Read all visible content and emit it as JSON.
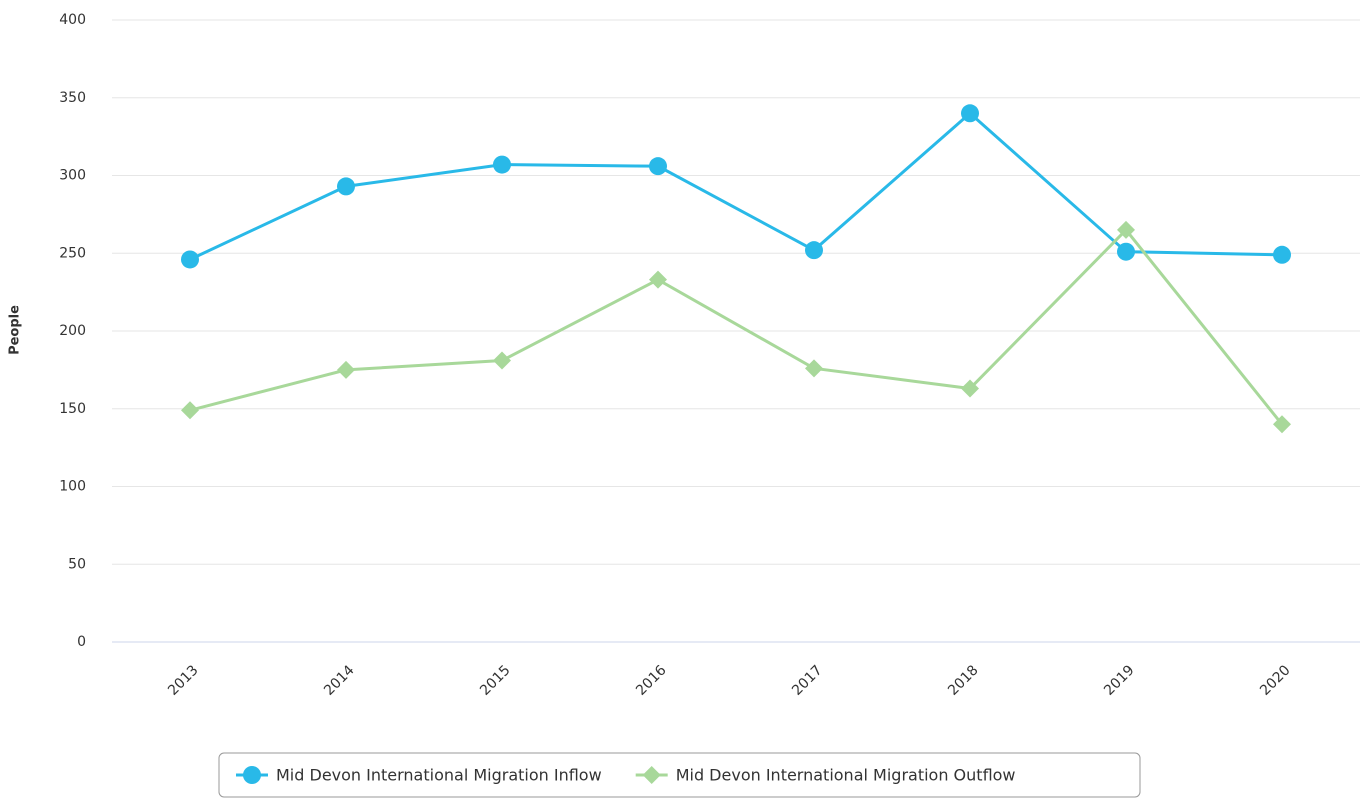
{
  "chart_data": {
    "type": "line",
    "y_label": "People",
    "categories": [
      "2013",
      "2014",
      "2015",
      "2016",
      "2017",
      "2018",
      "2019",
      "2020"
    ],
    "series": [
      {
        "name": "Mid Devon International Migration Inflow",
        "color": "#29b9e8",
        "marker": "circle",
        "values": [
          246,
          293,
          307,
          306,
          252,
          340,
          251,
          249
        ]
      },
      {
        "name": "Mid Devon International Migration Outflow",
        "color": "#a8d89a",
        "marker": "diamond",
        "values": [
          149,
          175,
          181,
          233,
          176,
          163,
          265,
          140
        ]
      }
    ],
    "ylim": [
      0,
      400
    ],
    "yticks": [
      0,
      50,
      100,
      150,
      200,
      250,
      300,
      350,
      400
    ],
    "grid": true,
    "legend": "bottom"
  }
}
